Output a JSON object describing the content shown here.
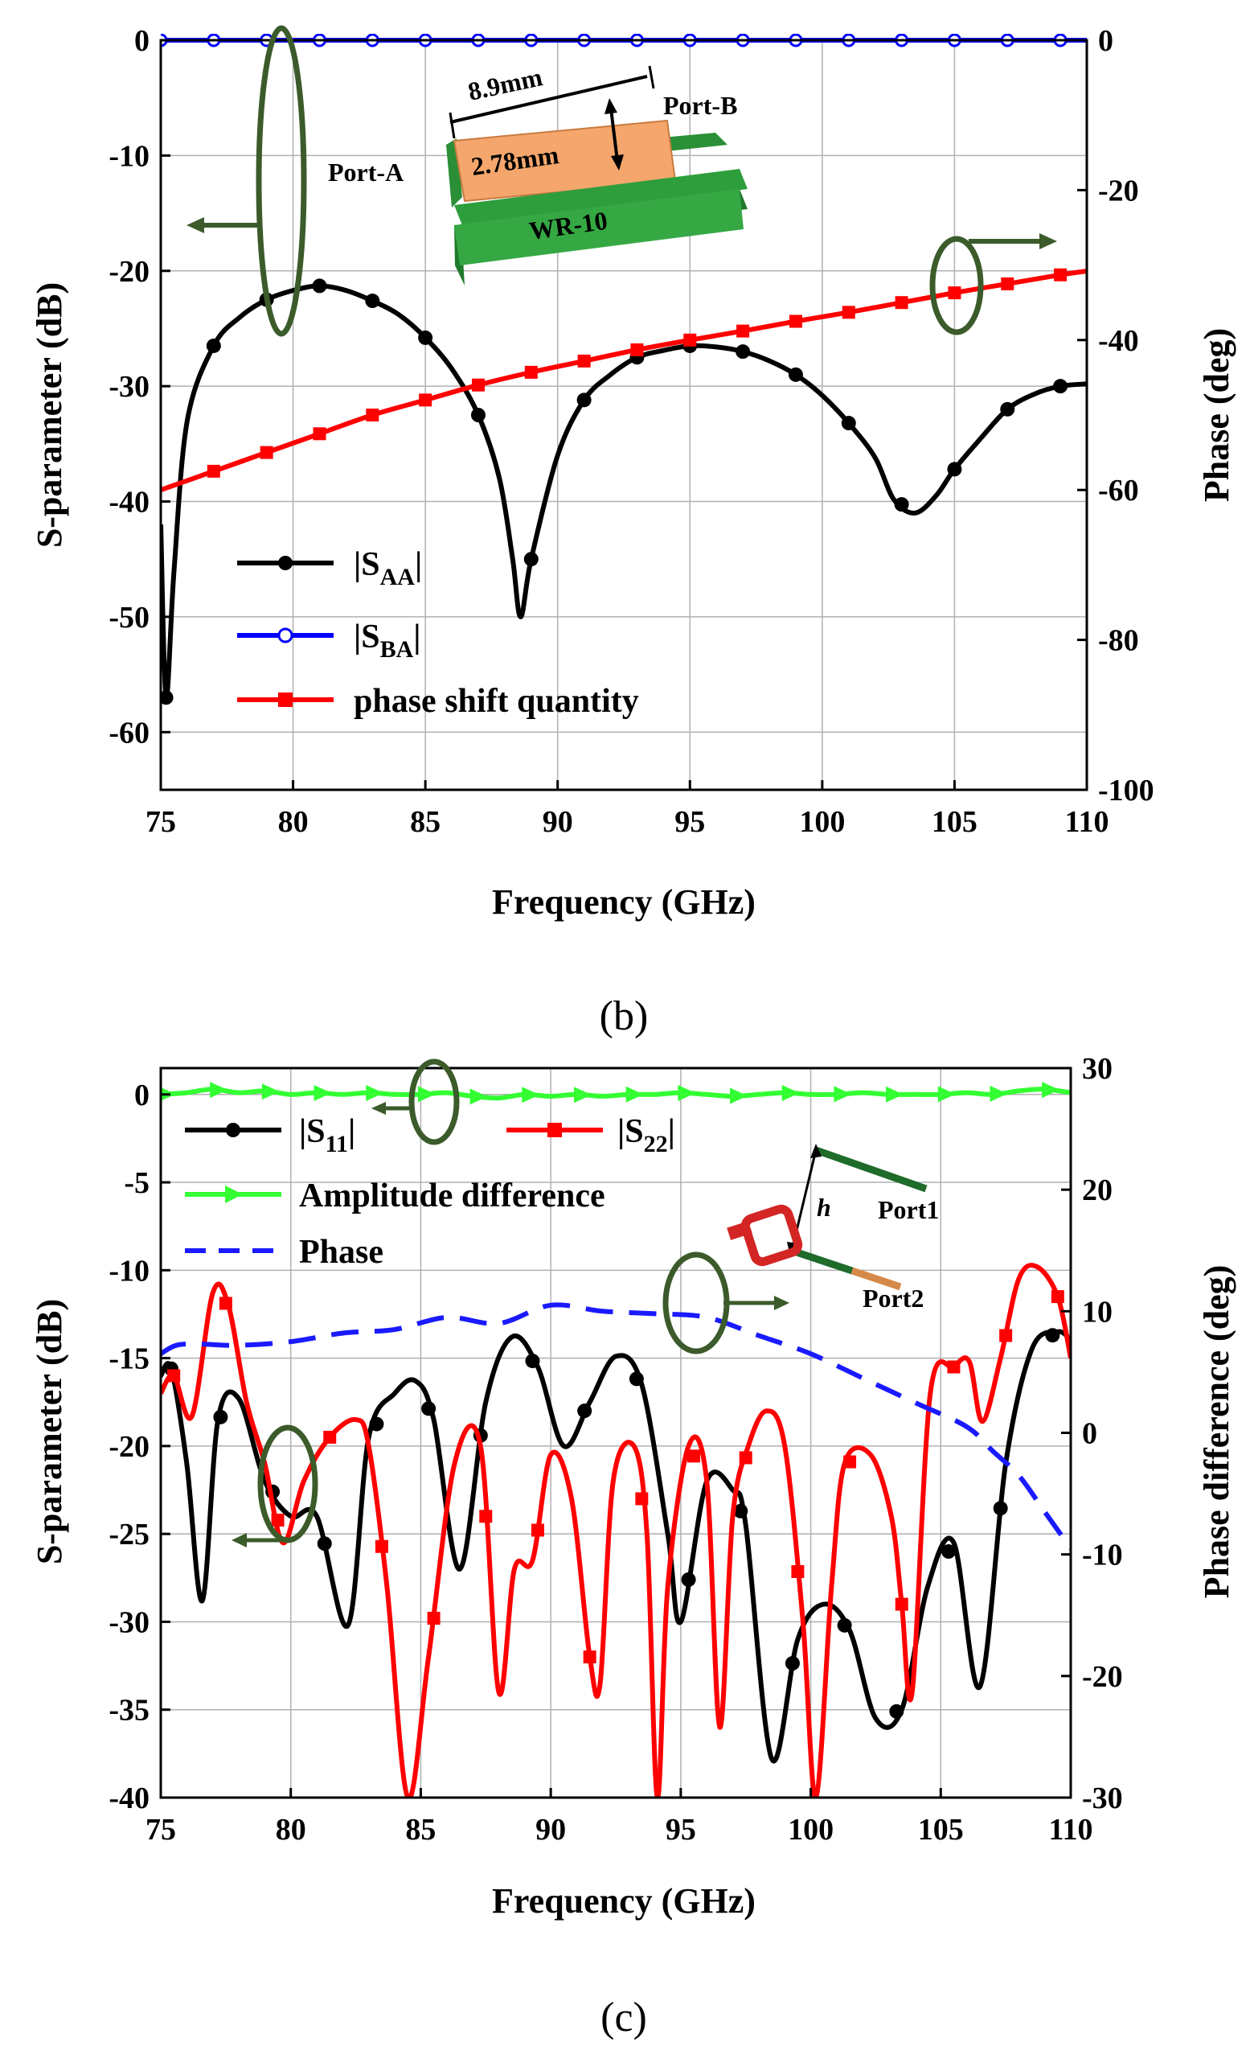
{
  "chart_data": [
    {
      "panel": "b",
      "type": "line",
      "caption": "(b)",
      "xlabel": "Frequency (GHz)",
      "ylabel": "S-parameter (dB)",
      "y2label": "Phase  (deg)",
      "xlim": [
        75,
        110
      ],
      "ylim": [
        -65,
        0
      ],
      "y2lim": [
        -100,
        0
      ],
      "xticks": [
        75,
        80,
        85,
        90,
        95,
        100,
        105,
        110
      ],
      "yticks": [
        0,
        -10,
        -20,
        -30,
        -40,
        -50,
        -60
      ],
      "y2ticks": [
        0,
        -20,
        -40,
        -60,
        -80,
        -100
      ],
      "grid": true,
      "legend_position": "lower-left",
      "series": [
        {
          "name": "|S",
          "sub": "AA",
          "suffix": "|",
          "axis": "left",
          "color": "#000000",
          "marker": "circle",
          "x": [
            75,
            75.2,
            75.5,
            76,
            77,
            78,
            79,
            80,
            81,
            82,
            83,
            84,
            85,
            86,
            87,
            87.8,
            88.3,
            88.6,
            89,
            90,
            91,
            92,
            93,
            94,
            95,
            96,
            97,
            98,
            99,
            100,
            101,
            102,
            102.7,
            103.5,
            104.3,
            105,
            106,
            107,
            108,
            109,
            110
          ],
          "y": [
            -42,
            -57,
            -46,
            -33,
            -26.5,
            -24,
            -22.5,
            -21.7,
            -21.3,
            -21.7,
            -22.6,
            -23.8,
            -25.8,
            -28.5,
            -32.5,
            -38,
            -45,
            -50,
            -45,
            -36,
            -31.2,
            -29,
            -27.5,
            -26.9,
            -26.5,
            -26.6,
            -27,
            -27.8,
            -29,
            -30.8,
            -33.2,
            -36.2,
            -39.8,
            -41,
            -39.5,
            -37.2,
            -34.5,
            -32,
            -30.7,
            -30,
            -29.8
          ],
          "markers_x": [
            75.2,
            77,
            79,
            81,
            83,
            85,
            87,
            89,
            91,
            93,
            95,
            97,
            99,
            101,
            103,
            105,
            107,
            109
          ]
        },
        {
          "name": "|S",
          "sub": "BA",
          "suffix": "|",
          "axis": "left",
          "color": "#0000ff",
          "marker": "open-circle",
          "x": [
            75,
            110
          ],
          "y": [
            0,
            0
          ],
          "markers_x": [
            75,
            77,
            79,
            81,
            83,
            85,
            87,
            89,
            91,
            93,
            95,
            97,
            99,
            101,
            103,
            105,
            107,
            109
          ]
        },
        {
          "name": "phase shift quantity",
          "axis": "right",
          "color": "#ff0000",
          "marker": "square",
          "x": [
            75,
            77,
            79,
            81,
            83,
            85,
            87,
            89,
            91,
            93,
            95,
            97,
            99,
            101,
            103,
            105,
            107,
            109,
            110
          ],
          "y": [
            -60,
            -57.5,
            -55,
            -52.5,
            -50,
            -48,
            -46,
            -44.3,
            -42.8,
            -41.3,
            -40,
            -38.8,
            -37.5,
            -36.3,
            -35,
            -33.7,
            -32.5,
            -31.3,
            -30.8
          ],
          "markers_x": [
            77,
            79,
            81,
            83,
            85,
            87,
            89,
            91,
            93,
            95,
            97,
            99,
            101,
            103,
            105,
            107,
            109
          ]
        }
      ],
      "inset": {
        "length_label": "8.9mm",
        "width_label": "2.78mm",
        "port_a": "Port-A",
        "port_b": "Port-B",
        "waveguide": "WR-10",
        "colors": {
          "substrate": "#f4a66c",
          "guide": "#2e9e3c",
          "ring": "#3b5b2b"
        }
      }
    },
    {
      "panel": "c",
      "type": "line",
      "caption": "(c)",
      "xlabel": "Frequency (GHz)",
      "ylabel": "S-parameter (dB)",
      "y2label": "Phase difference (deg)",
      "xlim": [
        75,
        110
      ],
      "ylim": [
        -40,
        1.5
      ],
      "y2lim": [
        -30,
        30
      ],
      "xticks": [
        75,
        80,
        85,
        90,
        95,
        100,
        105,
        110
      ],
      "yticks": [
        0,
        -5,
        -10,
        -15,
        -20,
        -25,
        -30,
        -35,
        -40
      ],
      "y2ticks": [
        30,
        20,
        10,
        0,
        -10,
        -20,
        -30
      ],
      "grid": true,
      "legend_position": "top-left",
      "series": [
        {
          "name": "|S",
          "sub": "11",
          "suffix": "|",
          "axis": "left",
          "color": "#000000",
          "marker": "circle",
          "x": [
            75,
            75.4,
            76,
            76.6,
            77.2,
            78,
            79,
            80,
            81,
            82.2,
            83,
            84,
            84.8,
            85.5,
            86.5,
            87.5,
            88.5,
            89.5,
            90.5,
            91.5,
            92.5,
            93.5,
            94.5,
            95,
            96,
            97,
            97.5,
            98.5,
            99.5,
            100.5,
            101.5,
            102.5,
            103.5,
            104.5,
            105.5,
            106.5,
            107.5,
            108.5,
            109.5,
            110
          ],
          "y": [
            -16,
            -15.6,
            -21,
            -28.8,
            -18.5,
            -17.3,
            -22,
            -24,
            -24,
            -30.2,
            -19.5,
            -17,
            -16.3,
            -18.5,
            -27,
            -17.5,
            -13.8,
            -15.5,
            -20,
            -17.5,
            -14.9,
            -16.5,
            -25,
            -30,
            -22,
            -22.5,
            -24.5,
            -37.8,
            -31,
            -29,
            -30.5,
            -35.5,
            -35,
            -28,
            -25.5,
            -33.7,
            -21,
            -14.5,
            -13.5,
            -14
          ],
          "markers_x": [
            75.4,
            77.3,
            79.3,
            81.3,
            83.3,
            85.3,
            87.3,
            89.3,
            91.3,
            93.3,
            95.3,
            97.3,
            99.3,
            101.3,
            103.3,
            105.3,
            107.3,
            109.3
          ]
        },
        {
          "name": "|S",
          "sub": "22",
          "suffix": "|",
          "axis": "left",
          "color": "#ff0000",
          "marker": "square",
          "x": [
            75,
            75.5,
            76.2,
            77,
            77.6,
            78.3,
            79,
            79.7,
            80.5,
            81.5,
            82.5,
            83,
            83.7,
            84.5,
            85.3,
            86.3,
            87.3,
            88,
            88.6,
            89.3,
            90,
            90.8,
            91.5,
            91.9,
            92.4,
            93.2,
            93.7,
            94.1,
            94.5,
            95.3,
            96,
            96.5,
            97,
            97.6,
            98.3,
            99,
            99.7,
            100.2,
            100.8,
            101.3,
            102.3,
            103.1,
            103.5,
            103.9,
            104.6,
            105.5,
            106.1,
            106.6,
            107.3,
            108,
            108.7,
            109.5,
            110
          ],
          "y": [
            -17,
            -16,
            -18.3,
            -11.3,
            -12,
            -17.5,
            -21,
            -25.5,
            -22,
            -19.5,
            -18.5,
            -20,
            -28,
            -40,
            -32,
            -21,
            -20,
            -34,
            -27,
            -26.5,
            -20.5,
            -23,
            -32,
            -33.5,
            -22,
            -20,
            -25,
            -40,
            -28,
            -20,
            -22,
            -36,
            -24,
            -20,
            -18,
            -20,
            -30,
            -40,
            -28,
            -21,
            -20.5,
            -24,
            -29,
            -34,
            -17,
            -15.5,
            -15.2,
            -18.6,
            -15,
            -10.5,
            -9.8,
            -11.5,
            -15
          ],
          "markers_x": [
            75.5,
            77.5,
            79.5,
            81.5,
            83.5,
            85.5,
            87.5,
            89.5,
            91.5,
            93.5,
            95.5,
            97.5,
            99.5,
            101.5,
            103.5,
            105.5,
            107.5,
            109.5
          ]
        },
        {
          "name": "Amplitude difference",
          "axis": "left",
          "color": "#33ff33",
          "marker": "triangle-right",
          "x": [
            75,
            76,
            77,
            78,
            79,
            80,
            81,
            82,
            83,
            84,
            85,
            86,
            87,
            88,
            89,
            90,
            91,
            92,
            93,
            94,
            95,
            96,
            97,
            98,
            99,
            100,
            101,
            102,
            103,
            104,
            105,
            106,
            107,
            108,
            109,
            110
          ],
          "y": [
            0,
            0.1,
            0.3,
            0.1,
            0.2,
            0,
            0.1,
            0,
            0.1,
            0,
            0,
            0.1,
            -0.1,
            -0.2,
            0,
            -0.1,
            0,
            -0.1,
            0,
            0,
            0.1,
            0,
            -0.1,
            0,
            0.1,
            0,
            0,
            0.1,
            0,
            0,
            0,
            0.1,
            0,
            0.2,
            0.3,
            0.1
          ],
          "markers_x": [
            75.2,
            77.2,
            79.2,
            81.2,
            83.2,
            85.2,
            87.2,
            89.2,
            91.2,
            93.2,
            95.2,
            97.2,
            99.2,
            101.2,
            103.2,
            105.2,
            107.2,
            109.2
          ]
        },
        {
          "name": "Phase",
          "axis": "right",
          "color": "#1a1aff",
          "marker": "none",
          "dash": true,
          "x": [
            75,
            75.6,
            76.5,
            78,
            80,
            82,
            84,
            86,
            88,
            90,
            92,
            94,
            96,
            98,
            100,
            102,
            104,
            106,
            107,
            108,
            109,
            110
          ],
          "y": [
            6.5,
            7.2,
            7.3,
            7.2,
            7.5,
            8.2,
            8.5,
            9.5,
            9,
            10.5,
            10,
            9.8,
            9.5,
            8,
            6.5,
            4.5,
            2.5,
            0.5,
            -1.5,
            -3.5,
            -6.5,
            -9.5
          ],
          "markers_x": []
        }
      ],
      "inset": {
        "height_label": "h",
        "port1": "Port1",
        "port2": "Port2",
        "colors": {
          "ring": "#d42525",
          "arm": "#1e6b2a",
          "feed": "#d68a4a",
          "ring_outline": "#3b5b2b"
        }
      }
    }
  ]
}
